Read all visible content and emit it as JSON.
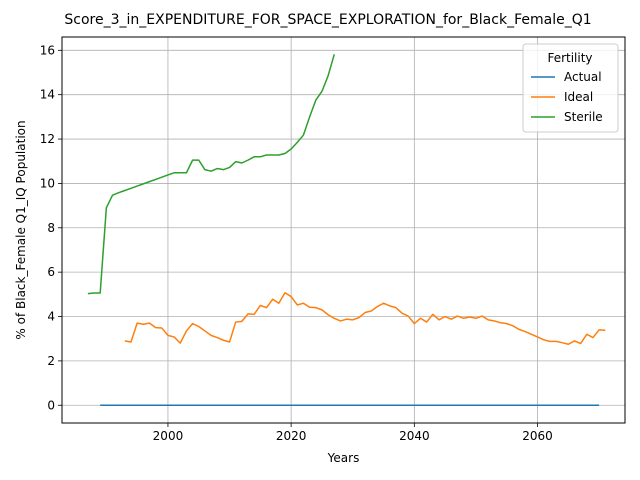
{
  "chart_data": {
    "type": "line",
    "title": "Score_3_in_EXPENDITURE_FOR_SPACE_EXPLORATION_for_Black_Female_Q1",
    "xlabel": "Years",
    "ylabel": "% of Black_Female Q1_IQ Population",
    "xlim": [
      1982.8,
      2074.2
    ],
    "ylim": [
      -0.8,
      16.6
    ],
    "xticks": [
      2000,
      2020,
      2040,
      2060
    ],
    "yticks": [
      0,
      2,
      4,
      6,
      8,
      10,
      12,
      14,
      16
    ],
    "grid": true,
    "legend": {
      "title": "Fertility",
      "placement": "top-right"
    },
    "series": [
      {
        "name": "Actual",
        "color": "#1f77b4",
        "points": [
          [
            1989,
            0
          ],
          [
            2070,
            0
          ]
        ]
      },
      {
        "name": "Ideal",
        "color": "#ff7f0e",
        "points": [
          [
            1993,
            2.9
          ],
          [
            1994,
            2.85
          ],
          [
            1995,
            3.7
          ],
          [
            1996,
            3.65
          ],
          [
            1997,
            3.7
          ],
          [
            1998,
            3.5
          ],
          [
            1999,
            3.48
          ],
          [
            2000,
            3.15
          ],
          [
            2001,
            3.08
          ],
          [
            2002,
            2.8
          ],
          [
            2003,
            3.35
          ],
          [
            2004,
            3.68
          ],
          [
            2005,
            3.55
          ],
          [
            2006,
            3.35
          ],
          [
            2007,
            3.15
          ],
          [
            2008,
            3.05
          ],
          [
            2009,
            2.93
          ],
          [
            2010,
            2.85
          ],
          [
            2011,
            3.75
          ],
          [
            2012,
            3.78
          ],
          [
            2013,
            4.12
          ],
          [
            2014,
            4.1
          ],
          [
            2015,
            4.5
          ],
          [
            2016,
            4.4
          ],
          [
            2017,
            4.78
          ],
          [
            2018,
            4.6
          ],
          [
            2019,
            5.07
          ],
          [
            2020,
            4.9
          ],
          [
            2021,
            4.52
          ],
          [
            2022,
            4.6
          ],
          [
            2023,
            4.42
          ],
          [
            2024,
            4.4
          ],
          [
            2025,
            4.3
          ],
          [
            2026,
            4.08
          ],
          [
            2027,
            3.92
          ],
          [
            2028,
            3.8
          ],
          [
            2029,
            3.88
          ],
          [
            2030,
            3.85
          ],
          [
            2031,
            3.95
          ],
          [
            2032,
            4.18
          ],
          [
            2033,
            4.25
          ],
          [
            2034,
            4.45
          ],
          [
            2035,
            4.6
          ],
          [
            2036,
            4.48
          ],
          [
            2037,
            4.4
          ],
          [
            2038,
            4.15
          ],
          [
            2039,
            4.02
          ],
          [
            2040,
            3.68
          ],
          [
            2041,
            3.92
          ],
          [
            2042,
            3.75
          ],
          [
            2043,
            4.1
          ],
          [
            2044,
            3.85
          ],
          [
            2045,
            4.0
          ],
          [
            2046,
            3.88
          ],
          [
            2047,
            4.02
          ],
          [
            2048,
            3.92
          ],
          [
            2049,
            3.98
          ],
          [
            2050,
            3.92
          ],
          [
            2051,
            4.02
          ],
          [
            2052,
            3.85
          ],
          [
            2053,
            3.8
          ],
          [
            2054,
            3.72
          ],
          [
            2055,
            3.68
          ],
          [
            2056,
            3.58
          ],
          [
            2057,
            3.42
          ],
          [
            2058,
            3.32
          ],
          [
            2059,
            3.2
          ],
          [
            2060,
            3.08
          ],
          [
            2061,
            2.95
          ],
          [
            2062,
            2.88
          ],
          [
            2063,
            2.88
          ],
          [
            2064,
            2.82
          ],
          [
            2065,
            2.75
          ],
          [
            2066,
            2.9
          ],
          [
            2067,
            2.78
          ],
          [
            2068,
            3.2
          ],
          [
            2069,
            3.05
          ],
          [
            2070,
            3.4
          ],
          [
            2071,
            3.38
          ]
        ]
      },
      {
        "name": "Sterile",
        "color": "#2ca02c",
        "points": [
          [
            1987,
            5.03
          ],
          [
            1988,
            5.06
          ],
          [
            1989,
            5.06
          ],
          [
            1990,
            8.9
          ],
          [
            1991,
            9.47
          ],
          [
            1992,
            9.58
          ],
          [
            1993,
            9.68
          ],
          [
            1994,
            9.78
          ],
          [
            1995,
            9.88
          ],
          [
            1996,
            9.98
          ],
          [
            1997,
            10.08
          ],
          [
            1998,
            10.18
          ],
          [
            1999,
            10.28
          ],
          [
            2000,
            10.38
          ],
          [
            2001,
            10.48
          ],
          [
            2002,
            10.48
          ],
          [
            2003,
            10.48
          ],
          [
            2004,
            11.05
          ],
          [
            2005,
            11.05
          ],
          [
            2006,
            10.62
          ],
          [
            2007,
            10.55
          ],
          [
            2008,
            10.67
          ],
          [
            2009,
            10.62
          ],
          [
            2010,
            10.72
          ],
          [
            2011,
            10.98
          ],
          [
            2012,
            10.92
          ],
          [
            2013,
            11.05
          ],
          [
            2014,
            11.2
          ],
          [
            2015,
            11.2
          ],
          [
            2016,
            11.28
          ],
          [
            2017,
            11.28
          ],
          [
            2018,
            11.28
          ],
          [
            2019,
            11.35
          ],
          [
            2020,
            11.55
          ],
          [
            2021,
            11.85
          ],
          [
            2022,
            12.18
          ],
          [
            2023,
            13.0
          ],
          [
            2024,
            13.75
          ],
          [
            2025,
            14.15
          ],
          [
            2026,
            14.85
          ],
          [
            2027,
            15.82
          ]
        ]
      }
    ]
  }
}
